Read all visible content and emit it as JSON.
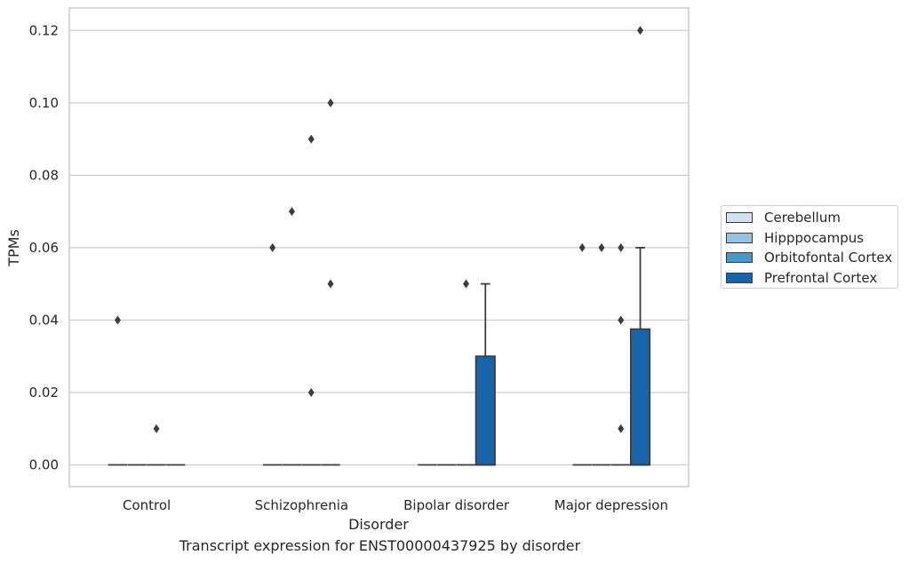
{
  "chart_data": {
    "type": "box",
    "title": "Transcript expression for ENST00000437925 by disorder",
    "xlabel": "Disorder",
    "ylabel": "TPMs",
    "ylim": [
      -0.006,
      0.1262
    ],
    "yticks": [
      0.0,
      0.02,
      0.04,
      0.06,
      0.08,
      0.1,
      0.12
    ],
    "ytick_labels": [
      "0.00",
      "0.02",
      "0.04",
      "0.06",
      "0.08",
      "0.10",
      "0.12"
    ],
    "categories": [
      "Control",
      "Schizophrenia",
      "Bipolar disorder",
      "Major depression"
    ],
    "grid": true,
    "legend_position": "right",
    "series": [
      {
        "name": "Cerebellum",
        "color": "#d0e1f2",
        "boxes": [
          {
            "q1": 0,
            "median": 0,
            "q3": 0,
            "whisker_low": 0,
            "whisker_high": 0,
            "outliers": [
              0.04
            ]
          },
          {
            "q1": 0,
            "median": 0,
            "q3": 0,
            "whisker_low": 0,
            "whisker_high": 0,
            "outliers": [
              0.06
            ]
          },
          {
            "q1": 0,
            "median": 0,
            "q3": 0,
            "whisker_low": 0,
            "whisker_high": 0,
            "outliers": []
          },
          {
            "q1": 0,
            "median": 0,
            "q3": 0,
            "whisker_low": 0,
            "whisker_high": 0,
            "outliers": [
              0.06
            ]
          }
        ]
      },
      {
        "name": "Hipppocampus",
        "color": "#94c4df",
        "boxes": [
          {
            "q1": 0,
            "median": 0,
            "q3": 0,
            "whisker_low": 0,
            "whisker_high": 0,
            "outliers": []
          },
          {
            "q1": 0,
            "median": 0,
            "q3": 0,
            "whisker_low": 0,
            "whisker_high": 0,
            "outliers": [
              0.07
            ]
          },
          {
            "q1": 0,
            "median": 0,
            "q3": 0,
            "whisker_low": 0,
            "whisker_high": 0,
            "outliers": []
          },
          {
            "q1": 0,
            "median": 0,
            "q3": 0,
            "whisker_low": 0,
            "whisker_high": 0,
            "outliers": [
              0.06
            ]
          }
        ]
      },
      {
        "name": "Orbitofontal Cortex",
        "color": "#4a98c9",
        "boxes": [
          {
            "q1": 0,
            "median": 0,
            "q3": 0,
            "whisker_low": 0,
            "whisker_high": 0,
            "outliers": [
              0.01
            ]
          },
          {
            "q1": 0,
            "median": 0,
            "q3": 0,
            "whisker_low": 0,
            "whisker_high": 0,
            "outliers": [
              0.09,
              0.02
            ]
          },
          {
            "q1": 0,
            "median": 0,
            "q3": 0,
            "whisker_low": 0,
            "whisker_high": 0,
            "outliers": [
              0.05
            ]
          },
          {
            "q1": 0,
            "median": 0,
            "q3": 0,
            "whisker_low": 0,
            "whisker_high": 0,
            "outliers": [
              0.06,
              0.04,
              0.01
            ]
          }
        ]
      },
      {
        "name": "Prefrontal Cortex",
        "color": "#1764ab",
        "boxes": [
          {
            "q1": 0,
            "median": 0,
            "q3": 0,
            "whisker_low": 0,
            "whisker_high": 0,
            "outliers": []
          },
          {
            "q1": 0,
            "median": 0,
            "q3": 0,
            "whisker_low": 0,
            "whisker_high": 0,
            "outliers": [
              0.1,
              0.05
            ]
          },
          {
            "q1": 0,
            "median": 0,
            "q3": 0.03,
            "whisker_low": 0,
            "whisker_high": 0.05,
            "outliers": []
          },
          {
            "q1": 0,
            "median": 0,
            "q3": 0.0375,
            "whisker_low": 0,
            "whisker_high": 0.06,
            "outliers": [
              0.12
            ]
          }
        ]
      }
    ]
  }
}
